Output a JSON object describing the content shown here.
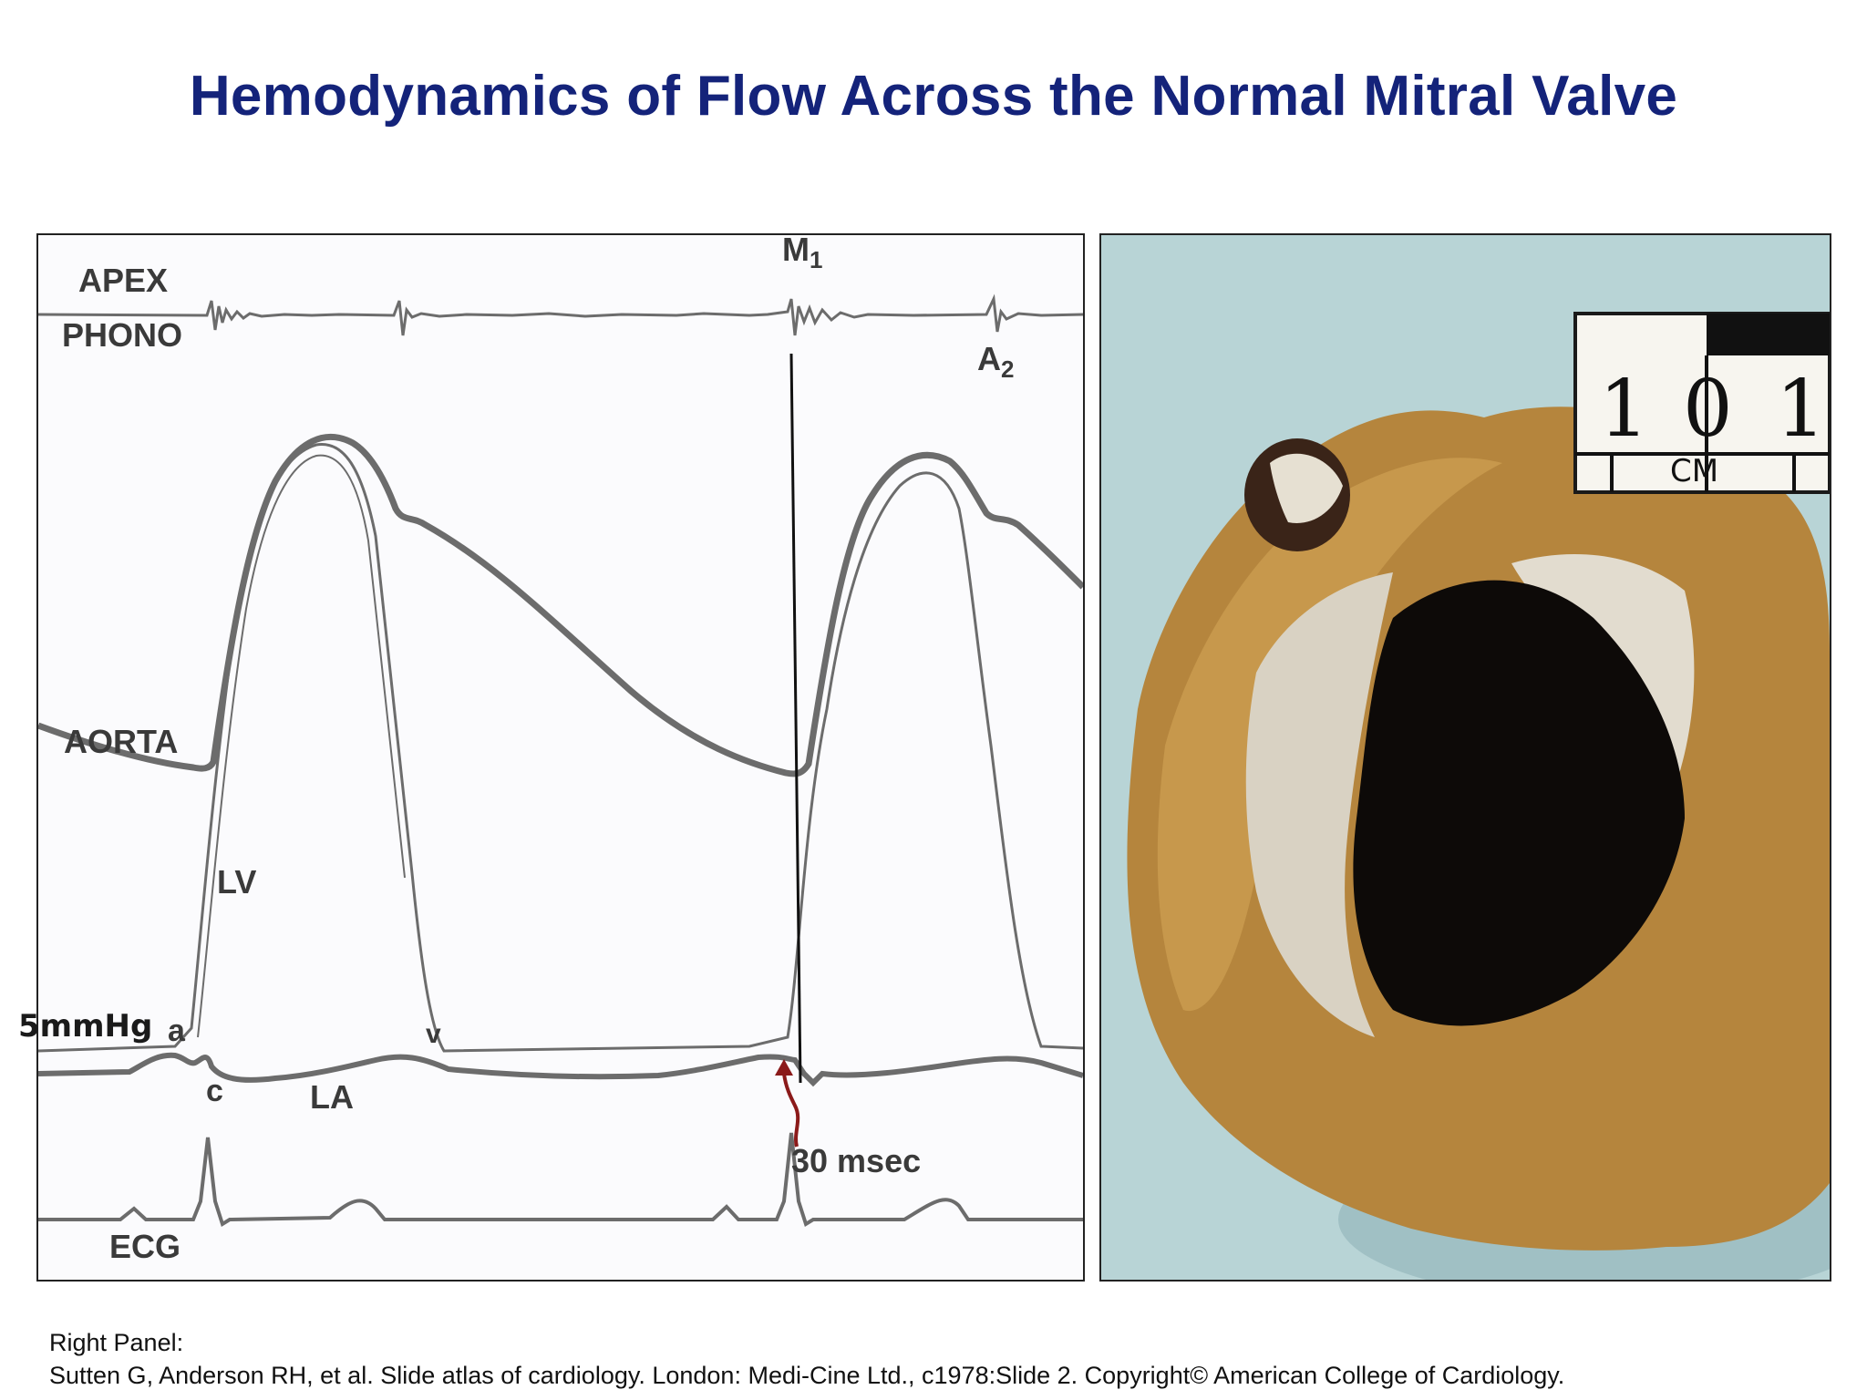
{
  "title": "Hemodynamics of Flow Across the Normal Mitral Valve",
  "left_panel": {
    "labels": {
      "apex": "APEX",
      "phono": "PHONO",
      "m1_main": "M",
      "m1_sub": "1",
      "a2_main": "A",
      "a2_sub": "2",
      "aorta": "AORTA",
      "lv": "LV",
      "la": "LA",
      "a_wave": "a",
      "c_wave": "c",
      "v_wave": "v",
      "interval": "30 msec",
      "ecg": "ECG"
    },
    "scale_label": "5mmHg",
    "colors": {
      "trace": "#6c6c6c",
      "arrow": "#8b1a1a"
    }
  },
  "right_panel": {
    "ruler": {
      "marks": [
        "1",
        "0",
        "1"
      ],
      "unit": "CM"
    },
    "colors": {
      "background": "#b8d4d6",
      "tissue": "#b5853d",
      "opening": "#0d0a08"
    }
  },
  "citation": {
    "line1": "Right Panel:",
    "line2": "Sutten G, Anderson RH, et al. Slide atlas of cardiology. London: Medi-Cine Ltd., c1978:Slide 2. Copyright© American College of Cardiology."
  }
}
